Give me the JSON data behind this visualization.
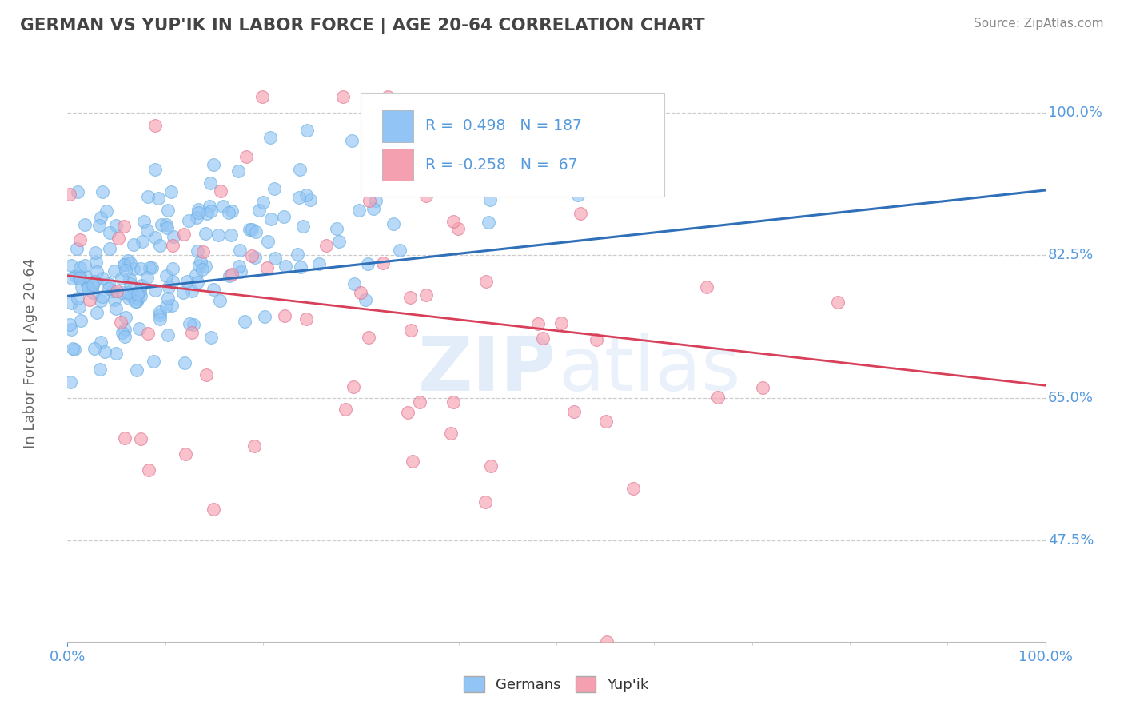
{
  "title": "GERMAN VS YUP'IK IN LABOR FORCE | AGE 20-64 CORRELATION CHART",
  "source": "Source: ZipAtlas.com",
  "ylabel": "In Labor Force | Age 20-64",
  "xlim": [
    0.0,
    1.0
  ],
  "ylim": [
    0.35,
    1.06
  ],
  "yticks": [
    0.475,
    0.65,
    0.825,
    1.0
  ],
  "ytick_labels": [
    "47.5%",
    "65.0%",
    "82.5%",
    "100.0%"
  ],
  "german_color": "#92c5f5",
  "german_edge_color": "#6aaee0",
  "yupik_color": "#f5a0b0",
  "yupik_edge_color": "#e07090",
  "german_line_color": "#3070b8",
  "yupik_line_color": "#d8405a",
  "german_R": 0.498,
  "german_N": 187,
  "yupik_R": -0.258,
  "yupik_N": 67,
  "german_line_y0": 0.775,
  "german_line_y1": 0.905,
  "yupik_line_y0": 0.8,
  "yupik_line_y1": 0.665,
  "legend_labels": [
    "Germans",
    "Yup'ik"
  ],
  "watermark_zip": "ZIP",
  "watermark_atlas": "atlas",
  "background_color": "#ffffff",
  "grid_color": "#cccccc",
  "title_color": "#444444",
  "axis_label_color": "#666666",
  "tick_label_color": "#5599dd",
  "legend_text_color": "#333333",
  "legend_stat_color": "#5599dd",
  "source_color": "#888888"
}
